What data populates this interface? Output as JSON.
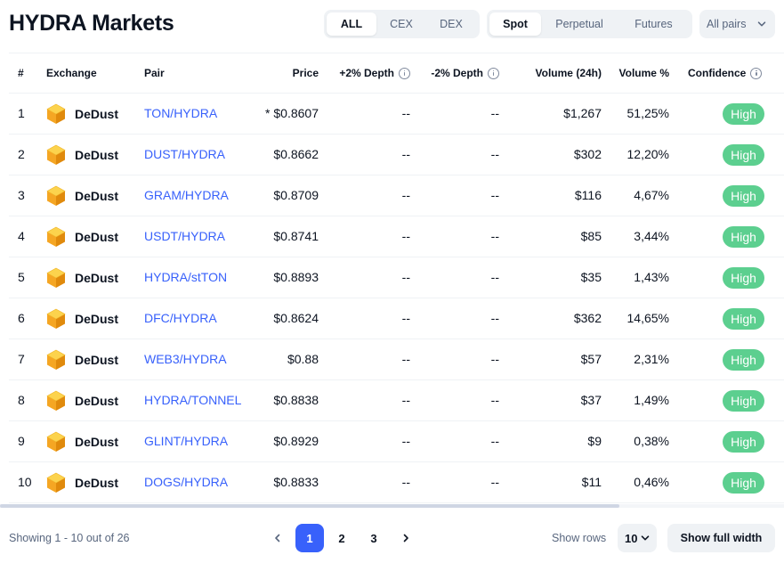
{
  "title": "HYDRA Markets",
  "filters": {
    "type_options": [
      "ALL",
      "CEX",
      "DEX"
    ],
    "type_selected": "ALL",
    "market_options": [
      "Spot",
      "Perpetual",
      "Futures"
    ],
    "market_selected": "Spot",
    "pairs_label": "All pairs"
  },
  "columns": {
    "rank": "#",
    "exchange": "Exchange",
    "pair": "Pair",
    "price": "Price",
    "depth_plus": "+2% Depth",
    "depth_minus": "-2% Depth",
    "volume": "Volume (24h)",
    "volume_pct": "Volume %",
    "confidence": "Confidence"
  },
  "rows": [
    {
      "rank": "1",
      "exchange": "DeDust",
      "pair": "TON/HYDRA",
      "price": "* $0.8607",
      "depth_plus": "--",
      "depth_minus": "--",
      "volume": "$1,267",
      "volume_pct": "51,25%",
      "confidence": "High"
    },
    {
      "rank": "2",
      "exchange": "DeDust",
      "pair": "DUST/HYDRA",
      "price": "$0.8662",
      "depth_plus": "--",
      "depth_minus": "--",
      "volume": "$302",
      "volume_pct": "12,20%",
      "confidence": "High"
    },
    {
      "rank": "3",
      "exchange": "DeDust",
      "pair": "GRAM/HYDRA",
      "price": "$0.8709",
      "depth_plus": "--",
      "depth_minus": "--",
      "volume": "$116",
      "volume_pct": "4,67%",
      "confidence": "High"
    },
    {
      "rank": "4",
      "exchange": "DeDust",
      "pair": "USDT/HYDRA",
      "price": "$0.8741",
      "depth_plus": "--",
      "depth_minus": "--",
      "volume": "$85",
      "volume_pct": "3,44%",
      "confidence": "High"
    },
    {
      "rank": "5",
      "exchange": "DeDust",
      "pair": "HYDRA/stTON",
      "price": "$0.8893",
      "depth_plus": "--",
      "depth_minus": "--",
      "volume": "$35",
      "volume_pct": "1,43%",
      "confidence": "High"
    },
    {
      "rank": "6",
      "exchange": "DeDust",
      "pair": "DFC/HYDRA",
      "price": "$0.8624",
      "depth_plus": "--",
      "depth_minus": "--",
      "volume": "$362",
      "volume_pct": "14,65%",
      "confidence": "High"
    },
    {
      "rank": "7",
      "exchange": "DeDust",
      "pair": "WEB3/HYDRA",
      "price": "$0.88",
      "depth_plus": "--",
      "depth_minus": "--",
      "volume": "$57",
      "volume_pct": "2,31%",
      "confidence": "High"
    },
    {
      "rank": "8",
      "exchange": "DeDust",
      "pair": "HYDRA/TONNEL",
      "price": "$0.8838",
      "depth_plus": "--",
      "depth_minus": "--",
      "volume": "$37",
      "volume_pct": "1,49%",
      "confidence": "High"
    },
    {
      "rank": "9",
      "exchange": "DeDust",
      "pair": "GLINT/HYDRA",
      "price": "$0.8929",
      "depth_plus": "--",
      "depth_minus": "--",
      "volume": "$9",
      "volume_pct": "0,38%",
      "confidence": "High"
    },
    {
      "rank": "10",
      "exchange": "DeDust",
      "pair": "DOGS/HYDRA",
      "price": "$0.8833",
      "depth_plus": "--",
      "depth_minus": "--",
      "volume": "$11",
      "volume_pct": "0,46%",
      "confidence": "High"
    }
  ],
  "footer": {
    "showing": "Showing 1 - 10 out of 26",
    "pages": [
      "1",
      "2",
      "3"
    ],
    "current_page": "1",
    "show_rows_label": "Show rows",
    "rows_value": "10",
    "full_width_label": "Show full width"
  },
  "icons": {
    "exchange": "dedust-cube-icon",
    "prev": "chevron-left-icon",
    "next": "chevron-right-icon",
    "dropdown": "chevron-down-icon",
    "info": "info-icon"
  },
  "colors": {
    "link": "#3861fb",
    "badge_high": "#5ccf8f",
    "active_page": "#3861fb",
    "text": "#0d1421",
    "muted": "#58667e",
    "segment_bg": "#eff2f5"
  }
}
